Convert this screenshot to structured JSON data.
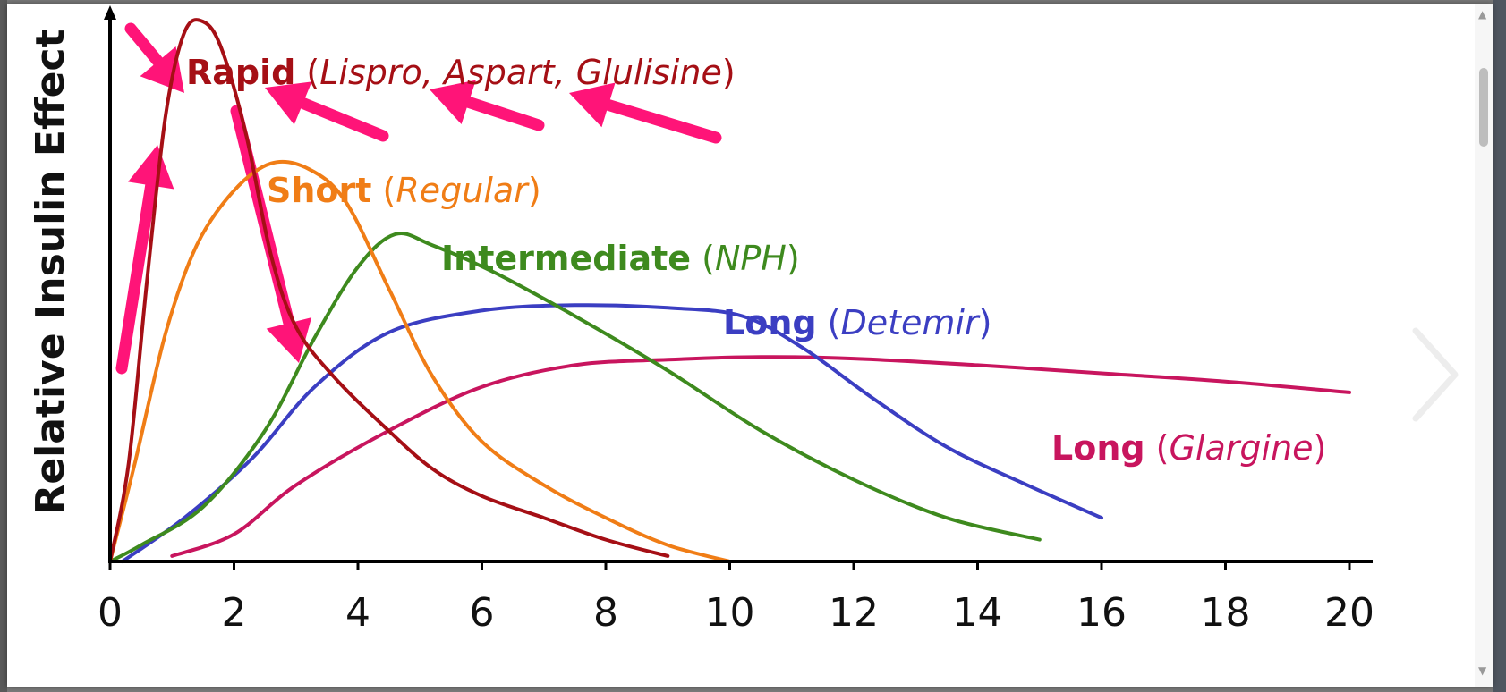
{
  "chart_data": {
    "type": "line",
    "xlabel": "",
    "ylabel": "Relative Insulin Effect",
    "xlim": [
      0,
      20.3
    ],
    "ylim": [
      0,
      10
    ],
    "x_ticks": [
      "0",
      "2",
      "4",
      "6",
      "8",
      "10",
      "12",
      "14",
      "16",
      "18",
      "20"
    ],
    "grid": false,
    "legend": "inline labels",
    "series": [
      {
        "key": "rapid",
        "name_bold": "Rapid",
        "name_italic": "Lispro, Aspart, Glulisine",
        "color": "#a50f15",
        "points": [
          [
            0,
            0
          ],
          [
            0.3,
            1.8
          ],
          [
            0.6,
            5.2
          ],
          [
            0.9,
            8.2
          ],
          [
            1.2,
            9.7
          ],
          [
            1.5,
            9.9
          ],
          [
            1.8,
            9.4
          ],
          [
            2.2,
            7.8
          ],
          [
            2.6,
            5.6
          ],
          [
            3.0,
            4.3
          ],
          [
            3.6,
            3.4
          ],
          [
            4.4,
            2.5
          ],
          [
            5.2,
            1.7
          ],
          [
            6.0,
            1.2
          ],
          [
            7.0,
            0.8
          ],
          [
            8.0,
            0.4
          ],
          [
            9.0,
            0.1
          ]
        ]
      },
      {
        "key": "short",
        "name_bold": "Short",
        "name_italic": "Regular",
        "color": "#f07d16",
        "points": [
          [
            0,
            0
          ],
          [
            0.4,
            1.8
          ],
          [
            0.9,
            4.2
          ],
          [
            1.4,
            5.8
          ],
          [
            2.0,
            6.8
          ],
          [
            2.6,
            7.3
          ],
          [
            3.2,
            7.2
          ],
          [
            3.8,
            6.6
          ],
          [
            4.5,
            5.0
          ],
          [
            5.2,
            3.4
          ],
          [
            6.0,
            2.2
          ],
          [
            7.0,
            1.4
          ],
          [
            8.0,
            0.8
          ],
          [
            9.0,
            0.3
          ],
          [
            10.0,
            0
          ]
        ]
      },
      {
        "key": "intermediate",
        "name_bold": "Intermediate",
        "name_italic": "NPH",
        "color": "#3e8a1e",
        "points": [
          [
            0,
            0
          ],
          [
            0.5,
            0.3
          ],
          [
            1.5,
            1.0
          ],
          [
            2.5,
            2.4
          ],
          [
            3.3,
            4.1
          ],
          [
            4.0,
            5.4
          ],
          [
            4.6,
            6.0
          ],
          [
            5.2,
            5.8
          ],
          [
            6.2,
            5.3
          ],
          [
            7.5,
            4.5
          ],
          [
            9.0,
            3.5
          ],
          [
            10.5,
            2.4
          ],
          [
            12.0,
            1.5
          ],
          [
            13.5,
            0.8
          ],
          [
            15.0,
            0.4
          ]
        ]
      },
      {
        "key": "detemir",
        "name_bold": "Long",
        "name_italic": "Detemir",
        "color": "#3b3ec2",
        "points": [
          [
            0.2,
            0
          ],
          [
            1.2,
            0.8
          ],
          [
            2.3,
            1.9
          ],
          [
            3.3,
            3.2
          ],
          [
            4.5,
            4.2
          ],
          [
            6.0,
            4.6
          ],
          [
            7.5,
            4.7
          ],
          [
            9.0,
            4.65
          ],
          [
            10.2,
            4.5
          ],
          [
            11.2,
            3.9
          ],
          [
            12.3,
            3.0
          ],
          [
            13.5,
            2.1
          ],
          [
            14.8,
            1.4
          ],
          [
            16.0,
            0.8
          ]
        ]
      },
      {
        "key": "glargine",
        "name_bold": "Long",
        "name_italic": "Glargine",
        "color": "#c8155e",
        "points": [
          [
            1.0,
            0.1
          ],
          [
            2.0,
            0.5
          ],
          [
            3.0,
            1.4
          ],
          [
            4.5,
            2.4
          ],
          [
            6.0,
            3.2
          ],
          [
            7.5,
            3.6
          ],
          [
            9.0,
            3.7
          ],
          [
            10.5,
            3.75
          ],
          [
            12.0,
            3.72
          ],
          [
            14.0,
            3.6
          ],
          [
            16.0,
            3.45
          ],
          [
            18.0,
            3.3
          ],
          [
            20.0,
            3.1
          ]
        ]
      }
    ],
    "annotation_arrows": {
      "color": "#ff1478",
      "count": 7,
      "meaning": "emphasis arrows around the Rapid curve"
    }
  }
}
